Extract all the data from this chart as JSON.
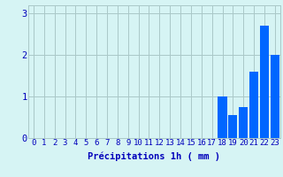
{
  "hours": [
    0,
    1,
    2,
    3,
    4,
    5,
    6,
    7,
    8,
    9,
    10,
    11,
    12,
    13,
    14,
    15,
    16,
    17,
    18,
    19,
    20,
    21,
    22,
    23
  ],
  "values": [
    0,
    0,
    0,
    0,
    0,
    0,
    0,
    0,
    0,
    0,
    0,
    0,
    0,
    0,
    0,
    0,
    0,
    0,
    1.0,
    0.55,
    0.75,
    1.6,
    2.7,
    2.0
  ],
  "bar_color": "#0066ff",
  "background_color": "#d6f4f4",
  "grid_color": "#aac8c8",
  "xlabel": "Précipitations 1h ( mm )",
  "xlabel_color": "#0000bb",
  "tick_color": "#0000bb",
  "ylim": [
    0,
    3.2
  ],
  "yticks": [
    0,
    1,
    2,
    3
  ],
  "xlim": [
    -0.5,
    23.5
  ],
  "label_fontsize": 7.5,
  "tick_fontsize": 6.5
}
